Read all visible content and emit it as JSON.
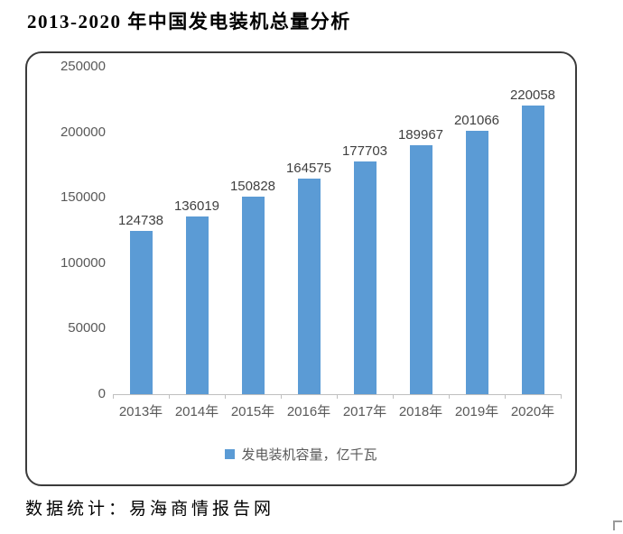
{
  "page": {
    "title": "2013-2020 年中国发电装机总量分析",
    "footer": "数据统计：易海商情报告网"
  },
  "chart_data": {
    "type": "bar",
    "title": "",
    "categories": [
      "2013年",
      "2014年",
      "2015年",
      "2016年",
      "2017年",
      "2018年",
      "2019年",
      "2020年"
    ],
    "series": [
      {
        "name": "发电装机容量，亿千瓦",
        "values": [
          124738,
          136019,
          150828,
          164575,
          177703,
          189967,
          201066,
          220058
        ]
      }
    ],
    "legend": "发电装机容量，亿千瓦",
    "legend_position": "bottom",
    "data_labels_shown": true,
    "xlabel": "",
    "ylabel": "",
    "ylim": [
      0,
      250000
    ],
    "ytick_step": 50000,
    "yticks": [
      0,
      50000,
      100000,
      150000,
      200000,
      250000
    ],
    "grid": false,
    "colors": {
      "bar": "#5B9BD5",
      "data_label": "#404040",
      "axis_text": "#595959",
      "axis_line": "#BFBFBF",
      "frame_border": "#3b3b3b"
    }
  }
}
